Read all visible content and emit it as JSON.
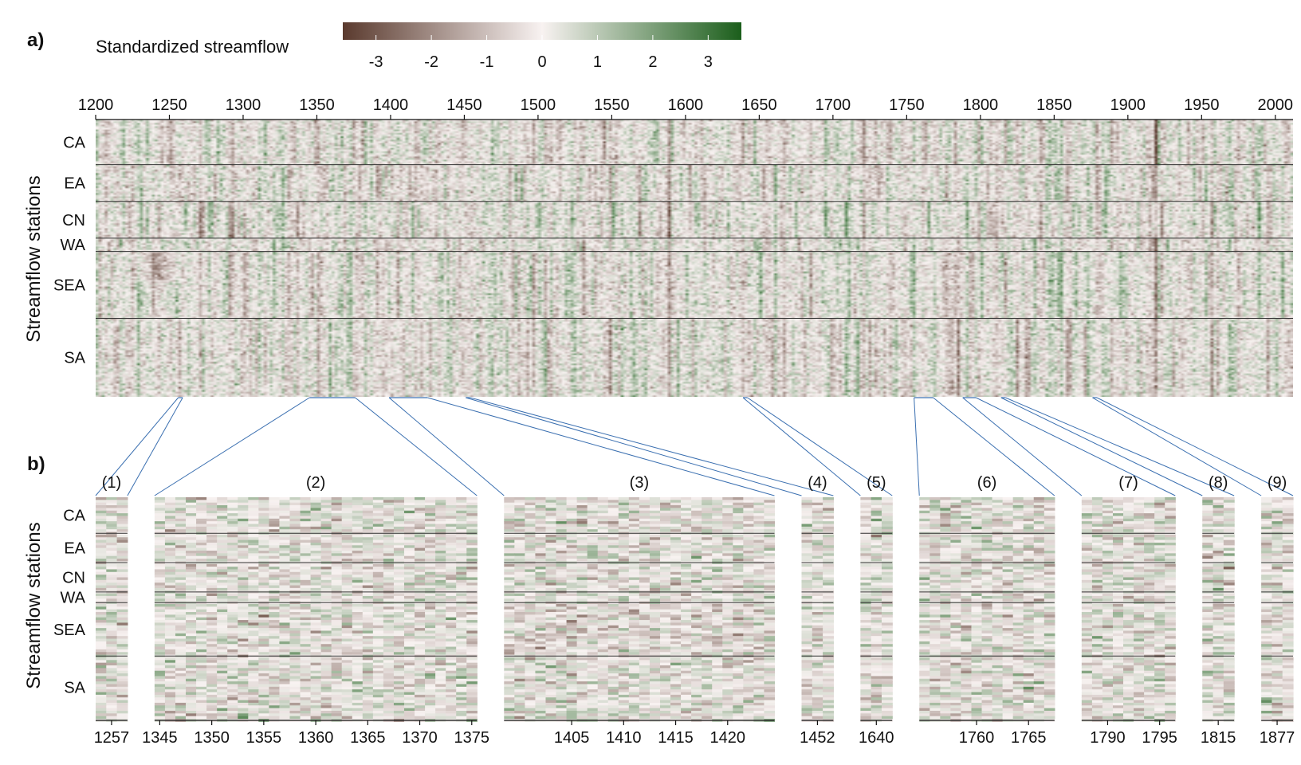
{
  "colors": {
    "low": "#5a3a2e",
    "mid": "#f8f2f1",
    "high": "#1b5e1b",
    "connector": "#3a6fb0",
    "separator": "#333333"
  },
  "colorbar": {
    "title": "Standardized streamflow",
    "min": -3.6,
    "max": 3.6,
    "ticks": [
      "-3",
      "-2",
      "-1",
      "0",
      "1",
      "2",
      "3"
    ]
  },
  "panel_a": {
    "label": "a)",
    "ylabel": "Streamflow stations",
    "xlim": [
      1200,
      2012
    ],
    "xticks": [
      "1200",
      "1250",
      "1300",
      "1350",
      "1400",
      "1450",
      "1500",
      "1550",
      "1600",
      "1650",
      "1700",
      "1750",
      "1800",
      "1850",
      "1900",
      "1950",
      "2000"
    ],
    "regions": [
      {
        "name": "CA",
        "stations": 27
      },
      {
        "name": "EA",
        "stations": 22
      },
      {
        "name": "CN",
        "stations": 22
      },
      {
        "name": "WA",
        "stations": 8
      },
      {
        "name": "SEA",
        "stations": 40
      },
      {
        "name": "SA",
        "stations": 47
      }
    ]
  },
  "panel_b": {
    "label": "b)",
    "ylabel": "Streamflow stations",
    "zooms": [
      {
        "label": "(1)",
        "start": 1256,
        "end": 1258,
        "ticks": [
          "1257"
        ]
      },
      {
        "label": "(2)",
        "start": 1345,
        "end": 1375,
        "ticks": [
          "1345",
          "1350",
          "1355",
          "1360",
          "1365",
          "1370",
          "1375"
        ]
      },
      {
        "label": "(3)",
        "start": 1399,
        "end": 1424,
        "ticks": [
          "1405",
          "1410",
          "1415",
          "1420"
        ]
      },
      {
        "label": "(4)",
        "start": 1451,
        "end": 1453,
        "ticks": [
          "1452"
        ]
      },
      {
        "label": "(5)",
        "start": 1639,
        "end": 1641,
        "ticks": [
          "1640"
        ]
      },
      {
        "label": "(6)",
        "start": 1755,
        "end": 1767,
        "ticks": [
          "1760",
          "1765"
        ]
      },
      {
        "label": "(7)",
        "start": 1788,
        "end": 1796,
        "ticks": [
          "1790",
          "1795"
        ]
      },
      {
        "label": "(8)",
        "start": 1814,
        "end": 1816,
        "ticks": [
          "1815"
        ]
      },
      {
        "label": "(9)",
        "start": 1876,
        "end": 1878,
        "ticks": [
          "1877"
        ]
      }
    ]
  },
  "chart_data": [
    {
      "type": "heatmap",
      "panel": "a)",
      "title": "",
      "xlabel": "",
      "ylabel": "Streamflow stations",
      "xlim": [
        1200,
        2012
      ],
      "color_scale": {
        "label": "Standardized streamflow",
        "range": [
          -3.6,
          3.6
        ],
        "low": "brown",
        "mid": "white",
        "high": "green"
      },
      "row_groups": [
        "CA",
        "EA",
        "CN",
        "WA",
        "SEA",
        "SA"
      ],
      "values": "dense station-by-year grid of standardized streamflow reconstructions (not individually labeled)"
    },
    {
      "type": "heatmap",
      "panel": "b)",
      "title": "",
      "ylabel": "Streamflow stations",
      "row_groups": [
        "CA",
        "EA",
        "CN",
        "WA",
        "SEA",
        "SA"
      ],
      "zoom_windows": [
        {
          "label": "(1)",
          "years": [
            1256,
            1258
          ]
        },
        {
          "label": "(2)",
          "years": [
            1345,
            1375
          ]
        },
        {
          "label": "(3)",
          "years": [
            1399,
            1424
          ]
        },
        {
          "label": "(4)",
          "years": [
            1451,
            1453
          ]
        },
        {
          "label": "(5)",
          "years": [
            1639,
            1641
          ]
        },
        {
          "label": "(6)",
          "years": [
            1755,
            1767
          ]
        },
        {
          "label": "(7)",
          "years": [
            1788,
            1796
          ]
        },
        {
          "label": "(8)",
          "years": [
            1814,
            1816
          ]
        },
        {
          "label": "(9)",
          "years": [
            1876,
            1878
          ]
        }
      ]
    }
  ]
}
